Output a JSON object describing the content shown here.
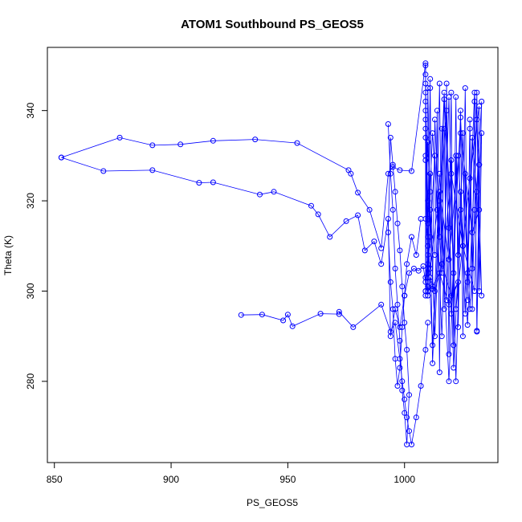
{
  "chart_data": {
    "type": "scatter",
    "title": "ATOM1 Southbound PS_GEOS5",
    "xlabel": "PS_GEOS5",
    "ylabel": "Theta (K)",
    "xlim": [
      847,
      1040
    ],
    "ylim": [
      262,
      354
    ],
    "xticks": [
      850,
      900,
      950,
      1000
    ],
    "yticks": [
      280,
      300,
      320,
      340
    ],
    "grid": false,
    "legend": "none",
    "colors": {
      "series": "#0000ff",
      "axis": "#000000"
    },
    "series": [
      {
        "style": "lines+points",
        "x": [
          853,
          878,
          892,
          904,
          918,
          936,
          954,
          976,
          977,
          980,
          985,
          990,
          993,
          995,
          998,
          1003,
          1009,
          1009,
          1010,
          1011,
          1012,
          1013,
          1015,
          1017,
          1020,
          1024,
          1027,
          1030,
          1032,
          1031,
          1033,
          1028,
          1025,
          1022,
          1019,
          1016,
          1013,
          1011,
          1009,
          1010,
          1012,
          1015,
          1018,
          1021,
          1024,
          1026,
          1029,
          1031,
          1033,
          1031,
          1027,
          1023,
          1019,
          1015,
          1012,
          1010,
          1009,
          1012,
          1016,
          1020,
          1025,
          1030,
          1032,
          1028,
          1022,
          1017,
          1013,
          1010,
          1009,
          1011,
          1015,
          1019,
          1024,
          1029,
          1032
        ],
        "y": [
          329.6,
          334.0,
          332.3,
          332.5,
          333.3,
          333.6,
          332.8,
          326.8,
          326.0,
          321.8,
          318.0,
          309.5,
          326.0,
          327.5,
          326.8,
          326.6,
          350.5,
          329.0,
          316.0,
          345.0,
          300.5,
          338.0,
          312.0,
          342.5,
          295.0,
          338.5,
          304.0,
          344.0,
          328.0,
          291.2,
          342.0,
          296.0,
          335.0,
          280.0,
          343.0,
          290.0,
          330.0,
          312.0,
          300.0,
          345.0,
          284.0,
          320.0,
          340.0,
          283.0,
          318.0,
          295.0,
          334.0,
          322.0,
          299.0,
          338.0,
          292.5,
          330.0,
          280.0,
          326.0,
          288.0,
          310.0,
          299.0,
          335.0,
          304.0,
          326.0,
          310.0,
          300.0,
          341.0,
          325.0,
          296.0,
          344.0,
          290.0,
          333.0,
          316.0,
          305.0,
          322.0,
          307.0,
          335.0,
          313.0,
          318.0
        ]
      },
      {
        "style": "lines+points",
        "x": [
          853,
          871,
          892,
          912,
          918,
          938,
          944,
          960,
          963,
          968,
          975,
          980,
          983,
          987,
          990,
          993,
          994,
          996,
          998,
          1000,
          1002,
          1004,
          1006,
          1008,
          1009,
          1010,
          1011,
          1013,
          1016,
          1020,
          1023,
          1019,
          1015,
          1012,
          1010,
          1009
        ],
        "y": [
          329.6,
          326.6,
          326.8,
          324.0,
          324.1,
          321.4,
          322.0,
          318.9,
          317.0,
          312.0,
          315.5,
          316.8,
          309.0,
          311.0,
          306.0,
          316.0,
          290.0,
          296.0,
          292.0,
          299.0,
          304.0,
          305.0,
          304.5,
          305.5,
          302.0,
          299.0,
          303.0,
          300.0,
          306.0,
          299.0,
          302.0,
          297.0,
          304.0,
          301.0,
          300.0,
          303.0
        ]
      },
      {
        "style": "lines+points",
        "x": [
          930,
          939,
          948,
          950,
          952,
          964,
          972,
          972,
          978,
          990,
          994,
          996,
          998,
          999,
          1000,
          1001,
          1002,
          1003,
          1005,
          1007,
          1009,
          1010
        ],
        "y": [
          294.7,
          294.8,
          293.5,
          294.8,
          292.2,
          295.0,
          294.9,
          295.4,
          292.0,
          297.0,
          291.0,
          293.0,
          285.0,
          280.0,
          276.0,
          272.0,
          269.0,
          266.0,
          272.0,
          279.0,
          287.0,
          293.0
        ]
      },
      {
        "style": "lines+points",
        "x": [
          993,
          994,
          995,
          996,
          997,
          998,
          999,
          1000,
          1001,
          1002,
          1001,
          1000,
          999,
          998,
          997,
          996,
          995,
          994,
          993,
          994,
          995,
          996,
          997,
          998,
          999,
          1000,
          1001,
          1003,
          1005,
          1007
        ],
        "y": [
          337.0,
          326.0,
          318.0,
          305.0,
          297.0,
          289.0,
          278.0,
          273.0,
          266.0,
          277.0,
          287.0,
          293.0,
          301.0,
          309.0,
          315.0,
          322.0,
          328.0,
          334.0,
          313.0,
          302.0,
          296.0,
          285.0,
          279.0,
          283.0,
          292.0,
          299.0,
          306.0,
          312.0,
          308.0,
          316.0
        ]
      },
      {
        "style": "lines+points",
        "x": [
          1009,
          1009,
          1009,
          1010,
          1009,
          1010,
          1009,
          1010,
          1009,
          1010,
          1009,
          1010,
          1009,
          1010,
          1009,
          1010,
          1009,
          1010,
          1009,
          1010,
          1011,
          1010,
          1011,
          1010,
          1011,
          1010,
          1011,
          1010
        ],
        "y": [
          350.0,
          300.0,
          348.0,
          305.0,
          346.0,
          310.0,
          344.0,
          315.0,
          342.0,
          320.0,
          340.0,
          300.0,
          338.0,
          302.0,
          336.0,
          304.0,
          334.0,
          306.0,
          330.0,
          308.0,
          326.0,
          310.0,
          322.0,
          312.0,
          318.0,
          299.0,
          347.0,
          301.0
        ]
      },
      {
        "style": "lines+points",
        "x": [
          1013,
          1014,
          1015,
          1016,
          1017,
          1018,
          1019,
          1020,
          1021,
          1022,
          1023,
          1024,
          1025,
          1026,
          1027,
          1028,
          1029,
          1030,
          1031,
          1032,
          1033,
          1032,
          1031,
          1030,
          1029,
          1028,
          1027,
          1026,
          1025,
          1024,
          1023,
          1022,
          1021,
          1020,
          1019,
          1018,
          1017,
          1016,
          1015,
          1014
        ],
        "y": [
          308.0,
          340.0,
          282.0,
          336.0,
          296.0,
          346.0,
          286.0,
          329.0,
          304.0,
          343.0,
          292.0,
          322.0,
          310.0,
          345.0,
          298.0,
          336.0,
          305.0,
          342.0,
          291.0,
          328.0,
          335.0,
          300.0,
          344.0,
          318.0,
          296.0,
          338.0,
          302.0,
          326.0,
          290.0,
          340.0,
          308.0,
          330.0,
          288.0,
          344.0,
          314.0,
          298.0,
          336.0,
          306.0,
          346.0,
          318.0
        ]
      }
    ]
  }
}
